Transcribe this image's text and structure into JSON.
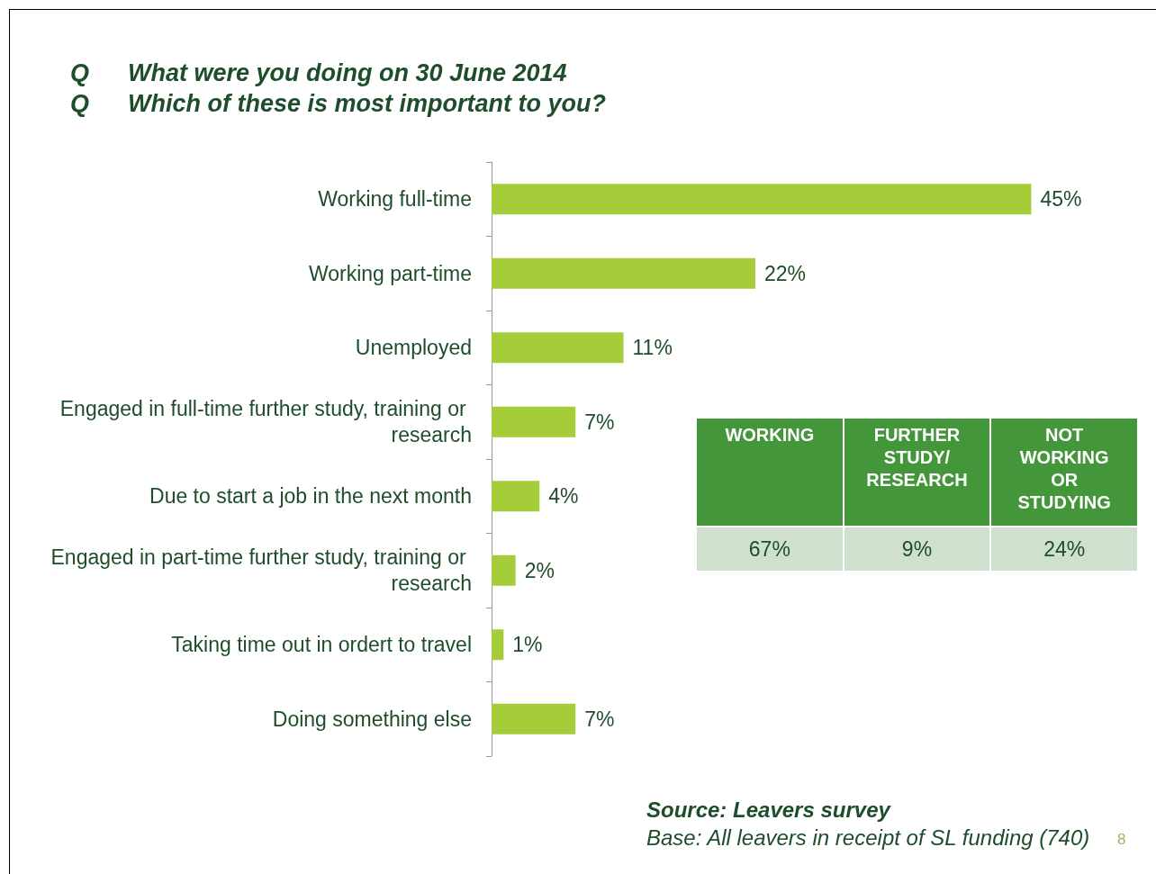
{
  "chart_data": [
    {
      "type": "bar",
      "orientation": "horizontal",
      "title": "Q What were you doing on 30 June 2014",
      "subtitle": "Q Which of these is most important to you?",
      "categories": [
        "Working full-time",
        "Working part-time",
        "Unemployed",
        "Engaged in full-time further study, training or research",
        "Due to start a job in the next month",
        "Engaged in part-time further study, training or research",
        "Taking time out in ordert to travel",
        "Doing something else"
      ],
      "values": [
        45,
        22,
        11,
        7,
        4,
        2,
        1,
        7
      ],
      "value_labels": [
        "45%",
        "22%",
        "11%",
        "7%",
        "4%",
        "2%",
        "1%",
        "7%"
      ],
      "color": "#a5cd39",
      "annotations": [
        "Source: Leavers survey",
        "Base: All leavers in receipt of SL funding (740)",
        "8"
      ]
    },
    {
      "type": "other",
      "categories": [
        "WORKING",
        "FURTHER STUDY/ RESEARCH",
        "NOT WORKING OR STUDYING"
      ],
      "value_labels": [
        "67%",
        "9%",
        "24%"
      ]
    }
  ]
}
